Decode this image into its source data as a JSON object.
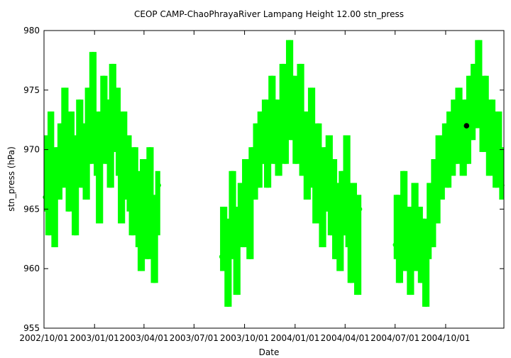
{
  "chart_data": {
    "type": "scatter",
    "title": "CEOP CAMP-ChaoPhrayaRiver Lampang Height 12.00 stn_press",
    "xlabel": "Date",
    "ylabel": "stn_press (hPa)",
    "x_type": "date",
    "xlim": [
      "2002-10-01",
      "2005-01-15"
    ],
    "ylim": [
      955,
      980
    ],
    "yticks": [
      955,
      960,
      965,
      970,
      975,
      980
    ],
    "xticks": [
      {
        "date": "2002-10-01",
        "label": "2002/10/01"
      },
      {
        "date": "2003-01-01",
        "label": "2003/01/01"
      },
      {
        "date": "2003-04-01",
        "label": "2003/04/01"
      },
      {
        "date": "2003-07-01",
        "label": "2003/07/01"
      },
      {
        "date": "2003-10-01",
        "label": "2003/10/01"
      },
      {
        "date": "2004-01-01",
        "label": "2004/01/01"
      },
      {
        "date": "2004-04-01",
        "label": "2004/04/01"
      },
      {
        "date": "2004-07-01",
        "label": "2004/07/01"
      },
      {
        "date": "2004-10-01",
        "label": "2004/10/01"
      }
    ],
    "grid": false,
    "legend": "none",
    "series_color": "#00ff00",
    "highlight_color": "#000000",
    "series": [
      {
        "points": [
          [
            "2002-10-03",
            966
          ],
          [
            "2002-10-06",
            970
          ],
          [
            "2002-10-10",
            964
          ],
          [
            "2002-10-14",
            972
          ],
          [
            "2002-10-17",
            968
          ],
          [
            "2002-10-21",
            963
          ],
          [
            "2002-10-24",
            969
          ],
          [
            "2002-10-28",
            967
          ],
          [
            "2002-11-01",
            971
          ],
          [
            "2002-11-04",
            968
          ],
          [
            "2002-11-08",
            974
          ],
          [
            "2002-11-12",
            970
          ],
          [
            "2002-11-15",
            966
          ],
          [
            "2002-11-19",
            972
          ],
          [
            "2002-11-23",
            969
          ],
          [
            "2002-11-27",
            964
          ],
          [
            "2002-12-01",
            970
          ],
          [
            "2002-12-05",
            973
          ],
          [
            "2002-12-09",
            968
          ],
          [
            "2002-12-13",
            971
          ],
          [
            "2002-12-17",
            967
          ],
          [
            "2002-12-21",
            974
          ],
          [
            "2002-12-25",
            970
          ],
          [
            "2002-12-29",
            977
          ],
          [
            "2003-01-02",
            972
          ],
          [
            "2003-01-06",
            969
          ],
          [
            "2003-01-10",
            965
          ],
          [
            "2003-01-14",
            972
          ],
          [
            "2003-01-18",
            975
          ],
          [
            "2003-01-22",
            970
          ],
          [
            "2003-01-26",
            973
          ],
          [
            "2003-01-30",
            968
          ],
          [
            "2003-02-03",
            976
          ],
          [
            "2003-02-07",
            971
          ],
          [
            "2003-02-11",
            974
          ],
          [
            "2003-02-15",
            969
          ],
          [
            "2003-02-19",
            965
          ],
          [
            "2003-02-23",
            972
          ],
          [
            "2003-02-27",
            967
          ],
          [
            "2003-03-03",
            970
          ],
          [
            "2003-03-07",
            966
          ],
          [
            "2003-03-11",
            964
          ],
          [
            "2003-03-15",
            969
          ],
          [
            "2003-03-19",
            967
          ],
          [
            "2003-03-23",
            963
          ],
          [
            "2003-03-27",
            961
          ],
          [
            "2003-03-31",
            968
          ],
          [
            "2003-04-04",
            966
          ],
          [
            "2003-04-08",
            962
          ],
          [
            "2003-04-12",
            969
          ],
          [
            "2003-04-16",
            965
          ],
          [
            "2003-04-20",
            960
          ],
          [
            "2003-04-24",
            964
          ],
          [
            "2003-04-28",
            967
          ],
          [
            "2003-08-20",
            961
          ],
          [
            "2003-08-24",
            964
          ],
          [
            "2003-08-28",
            962
          ],
          [
            "2003-09-01",
            958
          ],
          [
            "2003-09-05",
            963
          ],
          [
            "2003-09-09",
            967
          ],
          [
            "2003-09-13",
            962
          ],
          [
            "2003-09-17",
            959
          ],
          [
            "2003-09-21",
            964
          ],
          [
            "2003-09-25",
            966
          ],
          [
            "2003-09-29",
            963
          ],
          [
            "2003-10-03",
            968
          ],
          [
            "2003-10-07",
            965
          ],
          [
            "2003-10-11",
            962
          ],
          [
            "2003-10-15",
            969
          ],
          [
            "2003-10-19",
            967
          ],
          [
            "2003-10-23",
            971
          ],
          [
            "2003-10-27",
            968
          ],
          [
            "2003-10-31",
            972
          ],
          [
            "2003-11-04",
            970
          ],
          [
            "2003-11-08",
            973
          ],
          [
            "2003-11-12",
            968
          ],
          [
            "2003-11-16",
            972
          ],
          [
            "2003-11-20",
            975
          ],
          [
            "2003-11-24",
            970
          ],
          [
            "2003-11-28",
            973
          ],
          [
            "2003-12-02",
            969
          ],
          [
            "2003-12-06",
            972
          ],
          [
            "2003-12-10",
            976
          ],
          [
            "2003-12-14",
            970
          ],
          [
            "2003-12-18",
            974
          ],
          [
            "2003-12-22",
            978
          ],
          [
            "2003-12-26",
            972
          ],
          [
            "2003-12-30",
            975
          ],
          [
            "2004-01-03",
            970
          ],
          [
            "2004-01-07",
            973
          ],
          [
            "2004-01-11",
            976
          ],
          [
            "2004-01-15",
            969
          ],
          [
            "2004-01-19",
            972
          ],
          [
            "2004-01-23",
            967
          ],
          [
            "2004-01-27",
            970
          ],
          [
            "2004-01-31",
            974
          ],
          [
            "2004-02-04",
            968
          ],
          [
            "2004-02-08",
            965
          ],
          [
            "2004-02-12",
            971
          ],
          [
            "2004-02-16",
            967
          ],
          [
            "2004-02-20",
            963
          ],
          [
            "2004-02-24",
            969
          ],
          [
            "2004-02-28",
            966
          ],
          [
            "2004-03-03",
            970
          ],
          [
            "2004-03-07",
            964
          ],
          [
            "2004-03-11",
            968
          ],
          [
            "2004-03-15",
            962
          ],
          [
            "2004-03-19",
            966
          ],
          [
            "2004-03-23",
            961
          ],
          [
            "2004-03-27",
            967
          ],
          [
            "2004-03-31",
            964
          ],
          [
            "2004-04-04",
            970
          ],
          [
            "2004-04-08",
            963
          ],
          [
            "2004-04-12",
            960
          ],
          [
            "2004-04-16",
            966
          ],
          [
            "2004-04-20",
            962
          ],
          [
            "2004-04-24",
            959
          ],
          [
            "2004-04-28",
            965
          ],
          [
            "2004-07-01",
            962
          ],
          [
            "2004-07-05",
            965
          ],
          [
            "2004-07-09",
            960
          ],
          [
            "2004-07-13",
            963
          ],
          [
            "2004-07-17",
            967
          ],
          [
            "2004-07-21",
            961
          ],
          [
            "2004-07-25",
            964
          ],
          [
            "2004-07-29",
            959
          ],
          [
            "2004-08-02",
            962
          ],
          [
            "2004-08-06",
            966
          ],
          [
            "2004-08-10",
            961
          ],
          [
            "2004-08-14",
            964
          ],
          [
            "2004-08-18",
            960
          ],
          [
            "2004-08-22",
            963
          ],
          [
            "2004-08-26",
            958
          ],
          [
            "2004-08-30",
            962
          ],
          [
            "2004-09-03",
            966
          ],
          [
            "2004-09-07",
            963
          ],
          [
            "2004-09-11",
            968
          ],
          [
            "2004-09-15",
            965
          ],
          [
            "2004-09-19",
            970
          ],
          [
            "2004-09-23",
            967
          ],
          [
            "2004-09-27",
            969
          ],
          [
            "2004-10-01",
            971
          ],
          [
            "2004-10-05",
            968
          ],
          [
            "2004-10-09",
            972
          ],
          [
            "2004-10-13",
            969
          ],
          [
            "2004-10-17",
            973
          ],
          [
            "2004-10-21",
            970
          ],
          [
            "2004-10-25",
            974
          ],
          [
            "2004-10-29",
            971
          ],
          [
            "2004-11-02",
            969
          ],
          [
            "2004-11-06",
            973
          ],
          [
            "2004-11-10",
            970
          ],
          [
            "2004-11-14",
            975
          ],
          [
            "2004-11-18",
            972
          ],
          [
            "2004-11-22",
            976
          ],
          [
            "2004-11-26",
            973
          ],
          [
            "2004-11-30",
            978
          ],
          [
            "2004-12-04",
            974
          ],
          [
            "2004-12-08",
            971
          ],
          [
            "2004-12-12",
            975
          ],
          [
            "2004-12-16",
            972
          ],
          [
            "2004-12-20",
            969
          ],
          [
            "2004-12-24",
            973
          ],
          [
            "2004-12-28",
            970
          ],
          [
            "2005-01-01",
            968
          ],
          [
            "2005-01-05",
            972
          ],
          [
            "2005-01-09",
            969
          ],
          [
            "2005-01-12",
            967
          ]
        ]
      }
    ],
    "highlight_point": [
      "2004-11-08",
      972
    ]
  }
}
